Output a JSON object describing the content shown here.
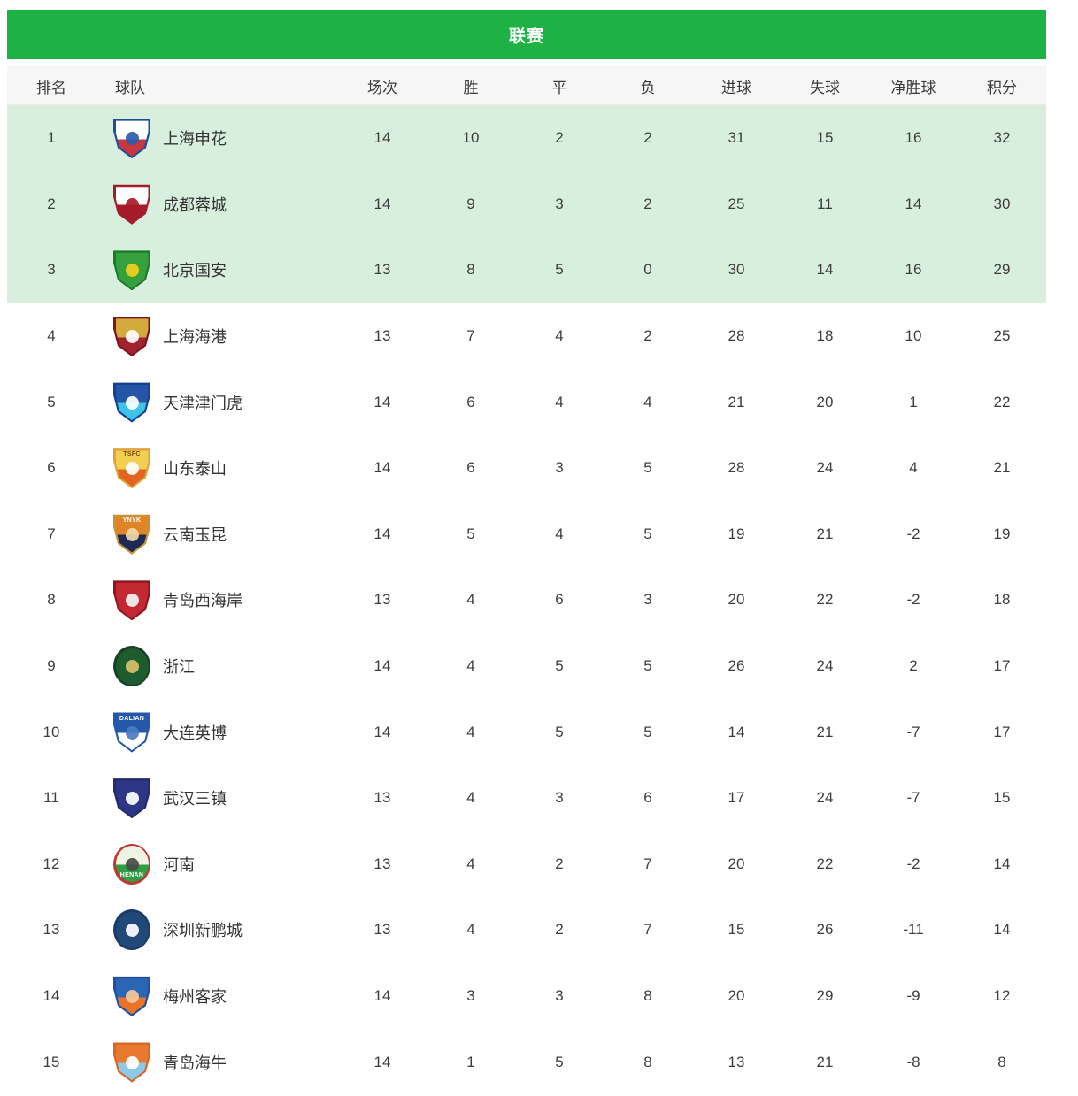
{
  "title": "联赛",
  "columns": [
    "排名",
    "球队",
    "场次",
    "胜",
    "平",
    "负",
    "进球",
    "失球",
    "净胜球",
    "积分"
  ],
  "colors": {
    "banner_green": "#1eb244",
    "highlight_row_green": "#d8efde",
    "header_bg": "#f6f6f6",
    "text": "#3d3d3d"
  },
  "teams": [
    {
      "rank": 1,
      "name": "上海申花",
      "played": 14,
      "win": 10,
      "draw": 2,
      "loss": 2,
      "gf": 31,
      "ga": 15,
      "gd": 16,
      "pts": 32,
      "highlight": true,
      "logo": {
        "icon": "shanghai-shenhua-crest",
        "shape": "shield",
        "border": "#1a4f9d",
        "top": "#ffffff",
        "bottom": "#c8363e",
        "dot": "#2a5cad",
        "text": ""
      }
    },
    {
      "rank": 2,
      "name": "成都蓉城",
      "played": 14,
      "win": 9,
      "draw": 3,
      "loss": 2,
      "gf": 25,
      "ga": 11,
      "gd": 14,
      "pts": 30,
      "highlight": true,
      "logo": {
        "icon": "chengdu-rongcheng-crest",
        "shape": "shield",
        "border": "#a61b29",
        "top": "#ffffff",
        "bottom": "#a61b29",
        "dot": "#a61b29",
        "text": ""
      }
    },
    {
      "rank": 3,
      "name": "北京国安",
      "played": 13,
      "win": 8,
      "draw": 5,
      "loss": 0,
      "gf": 30,
      "ga": 14,
      "gd": 16,
      "pts": 29,
      "highlight": true,
      "logo": {
        "icon": "beijing-guoan-crest",
        "shape": "shield",
        "border": "#1c7a2d",
        "top": "#35a03c",
        "bottom": "#35a03c",
        "dot": "#f2cf1d",
        "text": ""
      }
    },
    {
      "rank": 4,
      "name": "上海海港",
      "played": 13,
      "win": 7,
      "draw": 4,
      "loss": 2,
      "gf": 28,
      "ga": 18,
      "gd": 10,
      "pts": 25,
      "highlight": false,
      "logo": {
        "icon": "shanghai-port-crest",
        "shape": "shield",
        "border": "#7a1420",
        "top": "#d4aa3c",
        "bottom": "#a32230",
        "dot": "#ffffff",
        "text": ""
      }
    },
    {
      "rank": 5,
      "name": "天津津门虎",
      "played": 14,
      "win": 6,
      "draw": 4,
      "loss": 4,
      "gf": 21,
      "ga": 20,
      "gd": 1,
      "pts": 22,
      "highlight": false,
      "logo": {
        "icon": "tianjin-jinmen-tiger-crest",
        "shape": "shield",
        "border": "#16408c",
        "top": "#2456a8",
        "bottom": "#3cc4e8",
        "dot": "#ffffff",
        "text": ""
      }
    },
    {
      "rank": 6,
      "name": "山东泰山",
      "played": 14,
      "win": 6,
      "draw": 3,
      "loss": 5,
      "gf": 28,
      "ga": 24,
      "gd": 4,
      "pts": 21,
      "highlight": false,
      "logo": {
        "icon": "shandong-taishan-crest",
        "shape": "shield",
        "border": "#e0a33c",
        "top": "#f2cf50",
        "bottom": "#e2641e",
        "dot": "#ffffff",
        "text": "TSFC",
        "text_color": "#7a4a10",
        "text_pos": "top"
      }
    },
    {
      "rank": 7,
      "name": "云南玉昆",
      "played": 14,
      "win": 5,
      "draw": 4,
      "loss": 5,
      "gf": 19,
      "ga": 21,
      "gd": -2,
      "pts": 19,
      "highlight": false,
      "logo": {
        "icon": "yunnan-yukun-crest",
        "shape": "shield",
        "border": "#c89238",
        "top": "#e08428",
        "bottom": "#1e2a56",
        "dot": "#f0d9a8",
        "text": "YNYK",
        "text_color": "#ffffff",
        "text_pos": "top"
      }
    },
    {
      "rank": 8,
      "name": "青岛西海岸",
      "played": 13,
      "win": 4,
      "draw": 6,
      "loss": 3,
      "gf": 20,
      "ga": 22,
      "gd": -2,
      "pts": 18,
      "highlight": false,
      "logo": {
        "icon": "qingdao-west-coast-crest",
        "shape": "shield",
        "border": "#8c1620",
        "top": "#c42832",
        "bottom": "#c42832",
        "dot": "#f5f5f5",
        "text": ""
      }
    },
    {
      "rank": 9,
      "name": "浙江",
      "played": 14,
      "win": 4,
      "draw": 5,
      "loss": 5,
      "gf": 26,
      "ga": 24,
      "gd": 2,
      "pts": 17,
      "highlight": false,
      "logo": {
        "icon": "zhejiang-crest",
        "shape": "circle",
        "border": "#173f24",
        "top": "#1e5c30",
        "bottom": "#1e5c30",
        "dot": "#d8c06a",
        "text": ""
      }
    },
    {
      "rank": 10,
      "name": "大连英博",
      "played": 14,
      "win": 4,
      "draw": 5,
      "loss": 5,
      "gf": 14,
      "ga": 21,
      "gd": -7,
      "pts": 17,
      "highlight": false,
      "logo": {
        "icon": "dalian-yingbo-crest",
        "shape": "shield",
        "border": "#2458a8",
        "top": "#2458a8",
        "bottom": "#ffffff",
        "dot": "#4a7cc0",
        "text": "DALIAN",
        "text_color": "#ffffff",
        "text_pos": "top"
      }
    },
    {
      "rank": 11,
      "name": "武汉三镇",
      "played": 13,
      "win": 4,
      "draw": 3,
      "loss": 6,
      "gf": 17,
      "ga": 24,
      "gd": -7,
      "pts": 15,
      "highlight": false,
      "logo": {
        "icon": "wuhan-three-towns-crest",
        "shape": "shield",
        "border": "#232a6e",
        "top": "#2d3585",
        "bottom": "#2d3585",
        "dot": "#ffffff",
        "text": ""
      }
    },
    {
      "rank": 12,
      "name": "河南",
      "played": 13,
      "win": 4,
      "draw": 2,
      "loss": 7,
      "gf": 20,
      "ga": 22,
      "gd": -2,
      "pts": 14,
      "highlight": false,
      "logo": {
        "icon": "henan-crest",
        "shape": "circle",
        "border": "#c43430",
        "top": "#eef4e4",
        "bottom": "#2f9e44",
        "dot": "#4a4a4a",
        "text": "HENAN",
        "text_color": "#ffffff",
        "text_pos": "bottom"
      }
    },
    {
      "rank": 13,
      "name": "深圳新鹏城",
      "played": 13,
      "win": 4,
      "draw": 2,
      "loss": 7,
      "gf": 15,
      "ga": 26,
      "gd": -11,
      "pts": 14,
      "highlight": false,
      "logo": {
        "icon": "shenzhen-peng-city-crest",
        "shape": "circle",
        "border": "#1a3a66",
        "top": "#204878",
        "bottom": "#204878",
        "dot": "#ffffff",
        "text": ""
      }
    },
    {
      "rank": 14,
      "name": "梅州客家",
      "played": 14,
      "win": 3,
      "draw": 3,
      "loss": 8,
      "gf": 20,
      "ga": 29,
      "gd": -9,
      "pts": 12,
      "highlight": false,
      "logo": {
        "icon": "meizhou-hakka-crest",
        "shape": "shield",
        "border": "#1e4f9e",
        "top": "#2a66b4",
        "bottom": "#e8742a",
        "dot": "#f5c89a",
        "text": ""
      }
    },
    {
      "rank": 15,
      "name": "青岛海牛",
      "played": 14,
      "win": 1,
      "draw": 5,
      "loss": 8,
      "gf": 13,
      "ga": 21,
      "gd": -8,
      "pts": 8,
      "highlight": false,
      "logo": {
        "icon": "qingdao-hainiu-crest",
        "shape": "shield",
        "border": "#d86428",
        "top": "#e87a30",
        "bottom": "#8cc8e8",
        "dot": "#ffffff",
        "text": ""
      }
    }
  ]
}
